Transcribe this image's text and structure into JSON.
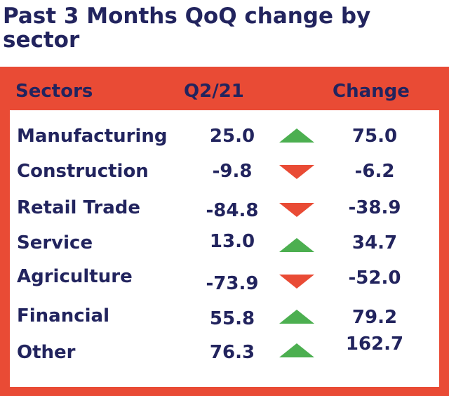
{
  "title": "Past 3 Months QoQ change by sector",
  "colors": {
    "title": "#22245e",
    "frame": "#e94b35",
    "up": "#4caf50",
    "down": "#e94b35"
  },
  "chart_data": {
    "type": "table",
    "columns": [
      "Sectors",
      "Q2/21",
      "Change"
    ],
    "rows": [
      {
        "sector": "Manufacturing",
        "q2": "25.0",
        "direction": "up",
        "change": "75.0"
      },
      {
        "sector": "Construction",
        "q2": "-9.8",
        "direction": "down",
        "change": "-6.2"
      },
      {
        "sector": "Retail Trade",
        "q2": "-84.8",
        "direction": "down",
        "change": "-38.9"
      },
      {
        "sector": "Service",
        "q2": "13.0",
        "direction": "up",
        "change": "34.7"
      },
      {
        "sector": "Agriculture",
        "q2": "-73.9",
        "direction": "down",
        "change": "-52.0"
      },
      {
        "sector": "Financial",
        "q2": "55.8",
        "direction": "up",
        "change": "79.2"
      },
      {
        "sector": "Other",
        "q2": "76.3",
        "direction": "up",
        "change": "162.7"
      }
    ]
  }
}
